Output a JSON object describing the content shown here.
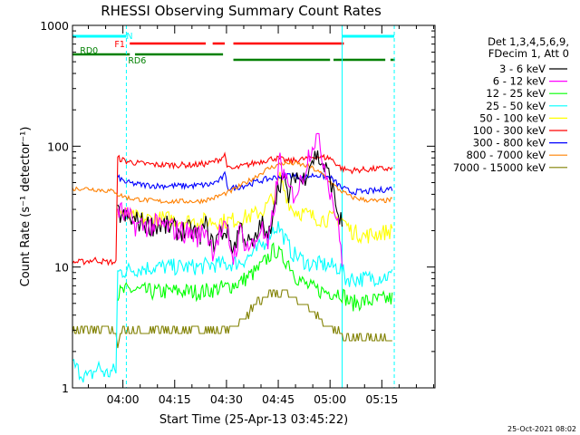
{
  "chart_data": {
    "type": "line",
    "title": "RHESSI Observing Summary Count Rates",
    "xlabel": "Start Time (25-Apr-13 03:45:22)",
    "ylabel": "Count Rate (s⁻¹ detector⁻¹)",
    "yscale": "log",
    "ylim": [
      1,
      1000
    ],
    "xlim_minutes": [
      225.4,
      330.4
    ],
    "x_ticks": [
      {
        "m": 240,
        "label": "04:00"
      },
      {
        "m": 255,
        "label": "04:15"
      },
      {
        "m": 270,
        "label": "04:30"
      },
      {
        "m": 285,
        "label": "04:45"
      },
      {
        "m": 300,
        "label": "05:00"
      },
      {
        "m": 315,
        "label": "05:15"
      }
    ],
    "y_ticks": [
      {
        "v": 1,
        "label": "1"
      },
      {
        "v": 10,
        "label": "10"
      },
      {
        "v": 100,
        "label": "100"
      },
      {
        "v": 1000,
        "label": "1000"
      }
    ],
    "legend_header": [
      "Det 1,3,4,5,6,9,",
      "FDecim 1, Att 0"
    ],
    "series": [
      {
        "name": "3 - 6 keV",
        "color": "#000000",
        "x": [
          225.4,
          232,
          238,
          238.5,
          241,
          244,
          248,
          252,
          256,
          260,
          262,
          264,
          266,
          268,
          270,
          272,
          274,
          276,
          278,
          280,
          282,
          284,
          286,
          288,
          290,
          292,
          294,
          296,
          298,
          300,
          302,
          303.5,
          304
        ],
        "y": [
          null,
          null,
          null,
          28,
          25,
          24,
          22,
          22,
          20,
          20,
          18,
          22,
          15,
          19,
          20,
          14,
          22,
          16,
          15,
          24,
          16,
          38,
          55,
          38,
          60,
          50,
          72,
          85,
          70,
          55,
          30,
          22,
          null
        ]
      },
      {
        "name": "6 - 12 keV",
        "color": "#ff00ff",
        "x": [
          225.4,
          232,
          238,
          238.5,
          241,
          244,
          248,
          252,
          256,
          260,
          262,
          264,
          266,
          268,
          270,
          272,
          274,
          276,
          278,
          280,
          282,
          284,
          285.5,
          287,
          289,
          291,
          293,
          294.5,
          296,
          298,
          300,
          302,
          303.5,
          304
        ],
        "y": [
          null,
          null,
          null,
          30,
          26,
          22,
          22,
          22,
          20,
          19,
          18,
          21,
          14,
          19,
          20,
          12,
          20,
          15,
          15,
          22,
          14,
          35,
          80,
          50,
          40,
          45,
          70,
          100,
          120,
          80,
          45,
          25,
          12,
          null
        ]
      },
      {
        "name": "12 - 25 keV",
        "color": "#00ff00",
        "x": [
          225.4,
          234,
          238,
          238.5,
          242,
          246,
          250,
          254,
          258,
          262,
          266,
          270,
          274,
          278,
          280,
          282,
          284,
          286,
          288,
          290,
          292,
          294,
          296,
          298,
          300,
          303,
          303.5,
          306,
          310,
          314,
          318,
          319
        ],
        "y": [
          null,
          null,
          null,
          6,
          6.5,
          6.3,
          6.2,
          6.3,
          6.3,
          6.2,
          6.5,
          6.8,
          7.5,
          9,
          10,
          12,
          14,
          12,
          11,
          8.5,
          7.5,
          6.8,
          6.5,
          6.3,
          6.2,
          6.2,
          6,
          5,
          5.2,
          5.3,
          5.5,
          null
        ]
      },
      {
        "name": "25 - 50 keV",
        "color": "#00ffff",
        "x": [
          225.4,
          227,
          230,
          233,
          235,
          238,
          238.5,
          242,
          246,
          250,
          254,
          258,
          262,
          266,
          270,
          274,
          278,
          281,
          283,
          285,
          287,
          289,
          291,
          294,
          298,
          302,
          303.5,
          304.5,
          306,
          310,
          314,
          318,
          319
        ],
        "y": [
          1.6,
          1.4,
          1.2,
          1.5,
          1.3,
          1.4,
          9,
          9.5,
          9.8,
          10,
          10,
          10,
          10,
          10.5,
          10.5,
          11,
          13,
          16,
          20,
          22,
          17,
          13,
          12,
          10.5,
          10.5,
          10,
          9.5,
          8,
          8,
          8,
          8.3,
          8.5,
          null
        ]
      },
      {
        "name": "50 - 100 keV",
        "color": "#ffff00",
        "x": [
          225.4,
          238,
          238.5,
          242,
          246,
          250,
          254,
          258,
          262,
          266,
          270,
          274,
          278,
          281,
          284,
          285.5,
          287,
          289,
          292,
          295,
          298,
          301,
          303.5,
          306,
          310,
          314,
          318,
          319
        ],
        "y": [
          null,
          null,
          30,
          26,
          25,
          25,
          25,
          24,
          24,
          24,
          24,
          25,
          27,
          30,
          40,
          55,
          42,
          30,
          28,
          26,
          25,
          25,
          25,
          20,
          18,
          19,
          20,
          null
        ]
      },
      {
        "name": "100 - 300 keV",
        "color": "#ff0000",
        "x": [
          225.4,
          228,
          232,
          235,
          238,
          238.5,
          241,
          245,
          250,
          255,
          260,
          265,
          268,
          269.5,
          270.5,
          272,
          276,
          280,
          284,
          288,
          292,
          296,
          300,
          303.5,
          306,
          310,
          314,
          318,
          319
        ],
        "y": [
          11,
          11,
          11.5,
          11,
          11,
          80,
          75,
          72,
          70,
          70,
          70,
          72,
          78,
          85,
          65,
          65,
          70,
          75,
          80,
          75,
          78,
          82,
          80,
          65,
          63,
          64,
          65,
          65,
          null
        ]
      },
      {
        "name": "300 - 800 keV",
        "color": "#0000ff",
        "x": [
          225.4,
          238,
          238.5,
          241,
          245,
          250,
          255,
          260,
          265,
          268,
          269.5,
          270.5,
          272,
          276,
          280,
          284,
          288,
          292,
          296,
          300,
          303.5,
          306,
          310,
          314,
          318,
          319
        ],
        "y": [
          null,
          null,
          55,
          50,
          48,
          47,
          47,
          47,
          48,
          52,
          58,
          45,
          45,
          48,
          52,
          55,
          58,
          55,
          58,
          55,
          45,
          42,
          42,
          43,
          45,
          null
        ]
      },
      {
        "name": "800 - 7000 keV",
        "color": "#ff8000",
        "x": [
          225.4,
          228,
          232,
          235,
          238,
          238.5,
          242,
          246,
          250,
          254,
          258,
          262,
          266,
          269,
          271,
          274,
          278,
          282,
          286,
          290,
          294,
          298,
          302,
          306,
          310,
          314,
          318,
          319
        ],
        "y": [
          44,
          45,
          44,
          43,
          42,
          40,
          37,
          36,
          35,
          35,
          35,
          35,
          37,
          40,
          42,
          47,
          55,
          65,
          72,
          72,
          68,
          58,
          45,
          38,
          36,
          35,
          36,
          null
        ]
      },
      {
        "name": "7000 - 15000 keV",
        "color": "#808000",
        "x": [
          225.4,
          230,
          235,
          238,
          238.5,
          240,
          244,
          248,
          252,
          256,
          260,
          264,
          268,
          272,
          276,
          279,
          282,
          285,
          288,
          291,
          294,
          296,
          298,
          300,
          303.5,
          306,
          310,
          314,
          318,
          319
        ],
        "y": [
          3,
          3,
          3,
          3,
          2.2,
          3,
          3,
          3,
          3,
          3,
          3,
          3,
          3,
          3.2,
          4,
          5,
          6,
          6,
          6,
          5,
          4.5,
          4,
          3.5,
          3,
          2.8,
          2.6,
          2.6,
          2.6,
          2.6,
          null
        ]
      }
    ],
    "flags": [
      {
        "label": "N",
        "color": "#00ffff",
        "label_at": 241,
        "segments": [
          [
            225.4,
            241
          ],
          [
            303.5,
            318.6
          ]
        ]
      },
      {
        "label": "F1",
        "color": "#ff0000",
        "label_at": 240.6,
        "segments": [
          [
            242,
            264
          ],
          [
            266,
            269.5
          ],
          [
            272,
            304
          ]
        ]
      },
      {
        "label": "RD0",
        "color": "#008000",
        "label_at": 232.8,
        "segments": [
          [
            225.4,
            242
          ],
          [
            243.5,
            269
          ]
        ]
      },
      {
        "label": "RD6",
        "color": "#008000",
        "label_at": 241.5,
        "segments": [
          [
            272,
            300
          ],
          [
            301,
            316
          ],
          [
            317.5,
            318.8
          ]
        ]
      }
    ],
    "vertical_markers": [
      {
        "m": 225.4,
        "style": "solid",
        "color": "#00ffff"
      },
      {
        "m": 241,
        "style": "dashed",
        "color": "#00ffff"
      },
      {
        "m": 303.5,
        "style": "solid",
        "color": "#00ffff"
      },
      {
        "m": 318.6,
        "style": "dashed",
        "color": "#00ffff"
      }
    ],
    "timestamp": "25-Oct-2021 08:02"
  }
}
